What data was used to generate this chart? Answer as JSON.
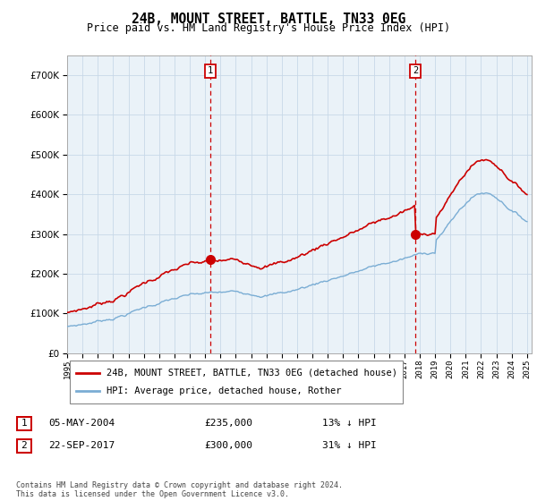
{
  "title": "24B, MOUNT STREET, BATTLE, TN33 0EG",
  "subtitle": "Price paid vs. HM Land Registry's House Price Index (HPI)",
  "ylim": [
    0,
    750000
  ],
  "yticks": [
    0,
    100000,
    200000,
    300000,
    400000,
    500000,
    600000,
    700000
  ],
  "year_start": 1995,
  "year_end": 2025,
  "hpi_color": "#7aadd4",
  "price_color": "#cc0000",
  "fill_color": "#d0e4f0",
  "bg_color": "#ffffff",
  "plot_bg": "#eaf2f8",
  "marker1_year": 2004.35,
  "marker2_year": 2017.72,
  "marker1_price": 235000,
  "marker2_price": 300000,
  "legend_label1": "24B, MOUNT STREET, BATTLE, TN33 0EG (detached house)",
  "legend_label2": "HPI: Average price, detached house, Rother",
  "table_row1_num": "1",
  "table_row1_date": "05-MAY-2004",
  "table_row1_price": "£235,000",
  "table_row1_hpi": "13% ↓ HPI",
  "table_row2_num": "2",
  "table_row2_date": "22-SEP-2017",
  "table_row2_price": "£300,000",
  "table_row2_hpi": "31% ↓ HPI",
  "footer": "Contains HM Land Registry data © Crown copyright and database right 2024.\nThis data is licensed under the Open Government Licence v3.0."
}
